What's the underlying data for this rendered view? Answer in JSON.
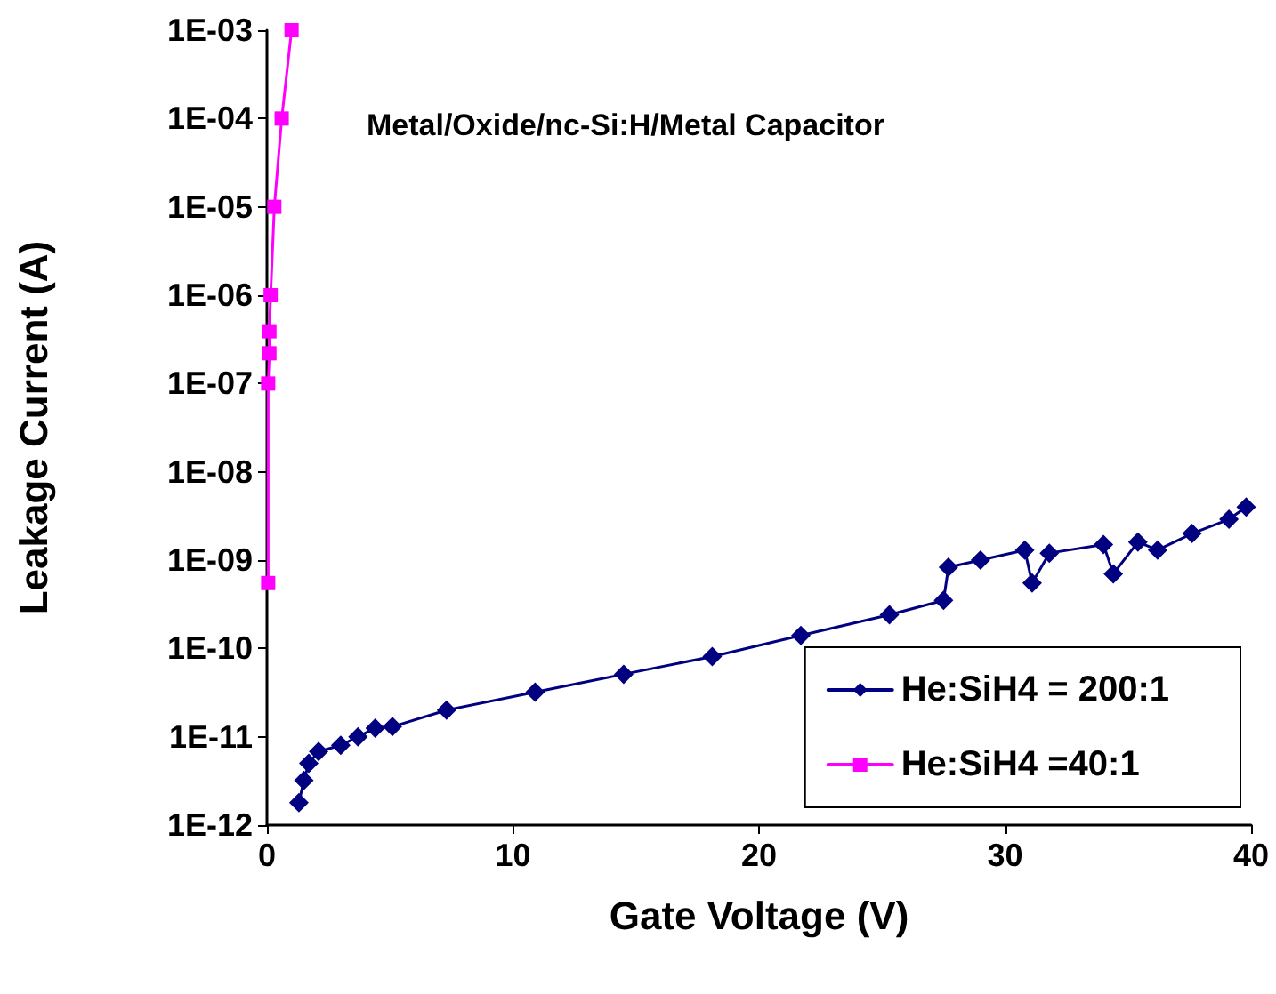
{
  "chart_data": {
    "type": "line",
    "xlabel": "Gate Voltage (V)",
    "ylabel": "Leakage Current (A)",
    "annotations": [
      "Metal/Oxide/nc-Si:H/Metal Capacitor"
    ],
    "xlim": [
      0,
      40
    ],
    "xticks": [
      0,
      10,
      20,
      30,
      40
    ],
    "ylim": [
      1e-12,
      0.001
    ],
    "log": true,
    "yticks": [
      {
        "value": 1e-12,
        "label": "1E-12"
      },
      {
        "value": 1e-11,
        "label": "1E-11"
      },
      {
        "value": 1e-10,
        "label": "1E-10"
      },
      {
        "value": 1e-09,
        "label": "1E-09"
      },
      {
        "value": 1e-08,
        "label": "1E-08"
      },
      {
        "value": 1e-07,
        "label": "1E-07"
      },
      {
        "value": 1e-06,
        "label": "1E-06"
      },
      {
        "value": 1e-05,
        "label": "1E-05"
      },
      {
        "value": 0.0001,
        "label": "1E-04"
      },
      {
        "value": 0.001,
        "label": "1E-03"
      }
    ],
    "grid": false,
    "legend": "bottom right",
    "line_style": "solid",
    "series": [
      {
        "name": "He:SiH4 = 200:1",
        "color": "#000080",
        "marker": "diamond",
        "x": [
          1.3,
          1.5,
          1.7,
          2.1,
          3.0,
          3.7,
          4.4,
          5.1,
          7.3,
          10.9,
          14.5,
          18.1,
          21.7,
          25.3,
          27.5,
          27.7,
          29,
          30.8,
          31.1,
          31.8,
          34,
          34.4,
          35.4,
          36.2,
          37.6,
          39.1,
          39.8
        ],
        "values": [
          1.8e-12,
          3.2e-12,
          5e-12,
          6.8e-12,
          8e-12,
          1e-11,
          1.25e-11,
          1.3e-11,
          2e-11,
          3.2e-11,
          5.1e-11,
          8.1e-11,
          1.4e-10,
          2.4e-10,
          3.5e-10,
          8.3e-10,
          1e-09,
          1.3e-09,
          5.5e-10,
          1.2e-09,
          1.5e-09,
          7e-10,
          1.6e-09,
          1.3e-09,
          2e-09,
          2.9e-09,
          4e-09
        ]
      },
      {
        "name": "He:SiH4 =40:1",
        "color": "#ff00ff",
        "marker": "square",
        "x": [
          0.05,
          0.05,
          0.1,
          0.1,
          0.15,
          0.3,
          0.6,
          1.0
        ],
        "values": [
          5.5e-10,
          1e-07,
          2.2e-07,
          3.9e-07,
          1e-06,
          1e-05,
          0.0001,
          0.001
        ]
      }
    ]
  }
}
